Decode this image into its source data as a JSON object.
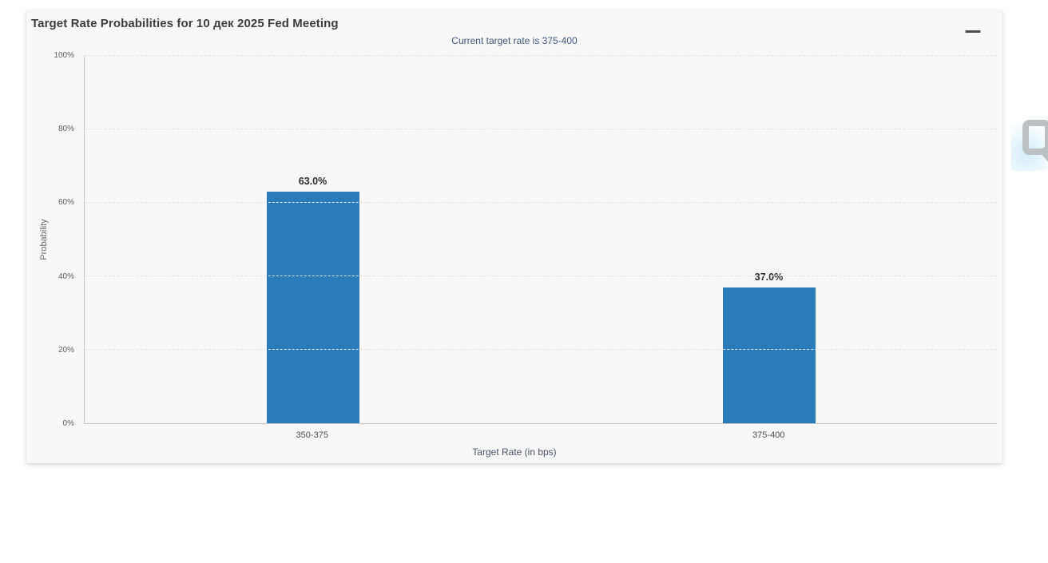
{
  "header": {
    "menu_tooltip": "Chart context menu"
  },
  "chart_data": {
    "type": "bar",
    "title": "Target Rate Probabilities for 10 дек 2025 Fed Meeting",
    "subtitle": "Current target rate is 375-400",
    "categories": [
      "350-375",
      "375-400"
    ],
    "values": [
      63.0,
      37.0
    ],
    "value_labels": [
      "63.0%",
      "37.0%"
    ],
    "xlabel": "Target Rate (in bps)",
    "ylabel": "Probability",
    "ylim": [
      0,
      100
    ],
    "yticks": [
      "0%",
      "20%",
      "40%",
      "60%",
      "80%",
      "100%"
    ],
    "grid": "dashed horizontal gridlines at y ticks",
    "legend": "none",
    "bar_color": "#2b7bba",
    "background_color": "#f7f7f7",
    "watermark": "Q"
  }
}
